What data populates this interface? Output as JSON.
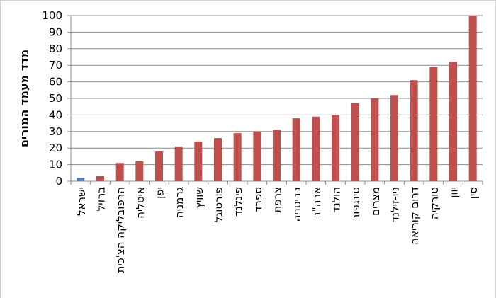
{
  "chart_data": {
    "type": "bar",
    "y_label": "מדד מעמד המורים",
    "categories": [
      "ישראל",
      "ברזיל",
      "הרפובליקה הצ'כית",
      "איטליה",
      "יפן",
      "גרמניה",
      "שוויץ",
      "פורטוגל",
      "פינלנד",
      "ספרד",
      "צרפת",
      "בריטניה",
      "ארה\"ב",
      "הולנד",
      "סינגפור",
      "מצרים",
      "ניו-זילנד",
      "דרום קוריאה",
      "טורקיה",
      "יוון",
      "סין"
    ],
    "values": [
      2,
      3,
      11,
      12,
      18,
      21,
      24,
      26,
      29,
      30,
      31,
      38,
      39,
      40,
      47,
      50,
      52,
      61,
      69,
      72,
      100
    ],
    "colors": [
      "#4f81bd",
      "#c0504d",
      "#c0504d",
      "#c0504d",
      "#c0504d",
      "#c0504d",
      "#c0504d",
      "#c0504d",
      "#c0504d",
      "#c0504d",
      "#c0504d",
      "#c0504d",
      "#c0504d",
      "#c0504d",
      "#c0504d",
      "#c0504d",
      "#c0504d",
      "#c0504d",
      "#c0504d",
      "#c0504d",
      "#c0504d"
    ],
    "ylim": [
      0,
      100
    ],
    "yticks": [
      0,
      10,
      20,
      30,
      40,
      50,
      60,
      70,
      80,
      90,
      100
    ],
    "grid": true
  }
}
